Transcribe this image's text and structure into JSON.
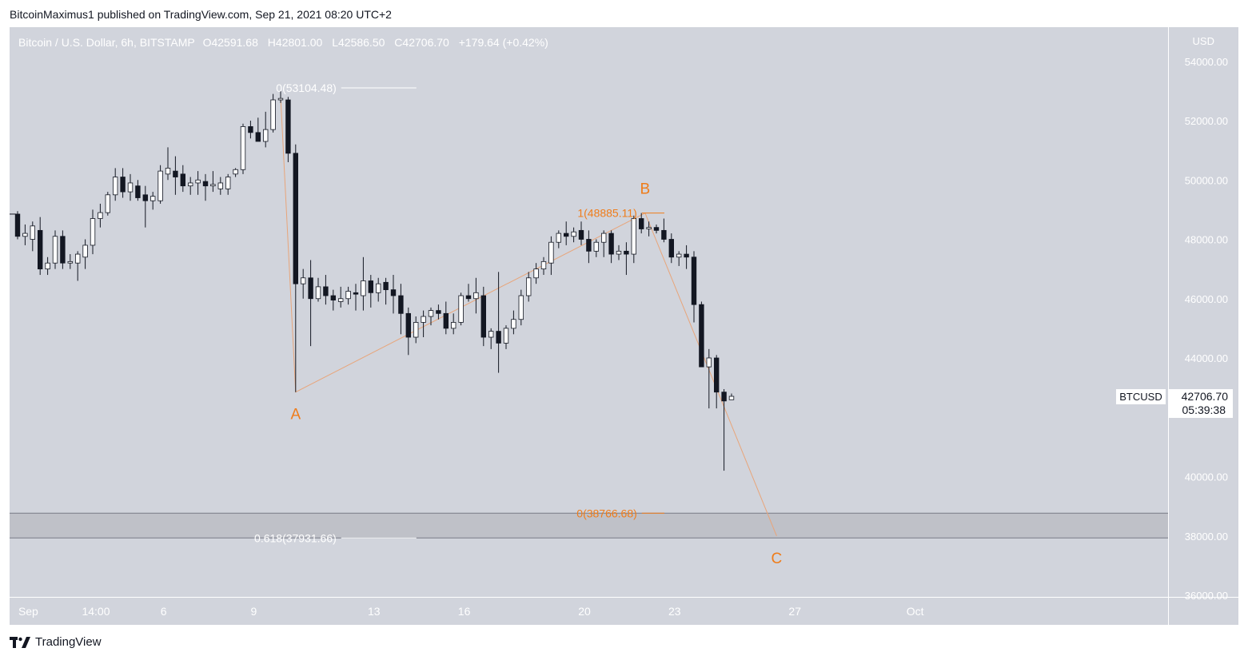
{
  "header": {
    "published_text": "BitcoinMaximus1 published on TradingView.com, Sep 21, 2021 08:20 UTC+2"
  },
  "legend": {
    "symbol": "Bitcoin / U.S. Dollar, 6h, BITSTAMP",
    "o_label": "O",
    "o_value": "42591.68",
    "h_label": "H",
    "h_value": "42801.00",
    "l_label": "L",
    "l_value": "42586.50",
    "c_label": "C",
    "c_value": "42706.70",
    "change": "+179.64 (+0.42%)"
  },
  "footer": {
    "brand": "TradingView"
  },
  "colors": {
    "plot_bg": "#d1d4dc",
    "candle_up": "#ffffff",
    "candle_down": "#131722",
    "wave": "#ef7c1a",
    "fib_white": "#ffffff",
    "zone": "#bfc1c8"
  },
  "chart_data": {
    "type": "candlestick",
    "currency_label": "USD",
    "ylim": [
      35500,
      55000
    ],
    "y_ticks": [
      "54000.00",
      "52000.00",
      "50000.00",
      "48000.00",
      "46000.00",
      "44000.00",
      "40000.00",
      "38000.00",
      "36000.00"
    ],
    "x_ticks": [
      {
        "label": "Sep",
        "x": 0.5
      },
      {
        "label": "14:00",
        "x": 2.75
      },
      {
        "label": "6",
        "x": 5.0
      },
      {
        "label": "9",
        "x": 8.0
      },
      {
        "label": "13",
        "x": 12.0
      },
      {
        "label": "16",
        "x": 15.0
      },
      {
        "label": "20",
        "x": 19.0
      },
      {
        "label": "23",
        "x": 22.0
      },
      {
        "label": "27",
        "x": 26.0
      },
      {
        "label": "Oct",
        "x": 30.0
      }
    ],
    "candles": [
      {
        "o": 48850,
        "h": 48950,
        "l": 48000,
        "c": 48100
      },
      {
        "o": 48100,
        "h": 48500,
        "l": 47800,
        "c": 48200
      },
      {
        "o": 48000,
        "h": 48600,
        "l": 47600,
        "c": 48450
      },
      {
        "o": 48300,
        "h": 48750,
        "l": 46800,
        "c": 47000
      },
      {
        "o": 47000,
        "h": 47400,
        "l": 46800,
        "c": 47200
      },
      {
        "o": 47200,
        "h": 48300,
        "l": 47000,
        "c": 48100
      },
      {
        "o": 48100,
        "h": 48300,
        "l": 47000,
        "c": 47200
      },
      {
        "o": 47200,
        "h": 47500,
        "l": 47000,
        "c": 47250
      },
      {
        "o": 47200,
        "h": 47600,
        "l": 46600,
        "c": 47500
      },
      {
        "o": 47400,
        "h": 48000,
        "l": 47000,
        "c": 47800
      },
      {
        "o": 47800,
        "h": 49000,
        "l": 47500,
        "c": 48700
      },
      {
        "o": 48700,
        "h": 49200,
        "l": 48400,
        "c": 48900
      },
      {
        "o": 48900,
        "h": 49600,
        "l": 48800,
        "c": 49500
      },
      {
        "o": 49500,
        "h": 50400,
        "l": 49300,
        "c": 50100
      },
      {
        "o": 50100,
        "h": 50400,
        "l": 49400,
        "c": 49600
      },
      {
        "o": 49600,
        "h": 50200,
        "l": 49300,
        "c": 49900
      },
      {
        "o": 49800,
        "h": 50000,
        "l": 49300,
        "c": 49400
      },
      {
        "o": 49500,
        "h": 49800,
        "l": 48400,
        "c": 49300
      },
      {
        "o": 49300,
        "h": 49600,
        "l": 49000,
        "c": 49450
      },
      {
        "o": 49300,
        "h": 50500,
        "l": 49200,
        "c": 50300
      },
      {
        "o": 50200,
        "h": 51100,
        "l": 50000,
        "c": 50400
      },
      {
        "o": 50300,
        "h": 50800,
        "l": 49500,
        "c": 50100
      },
      {
        "o": 50200,
        "h": 50500,
        "l": 49600,
        "c": 49800
      },
      {
        "o": 49800,
        "h": 50100,
        "l": 49500,
        "c": 49900
      },
      {
        "o": 49900,
        "h": 50300,
        "l": 49500,
        "c": 50000
      },
      {
        "o": 49950,
        "h": 50200,
        "l": 49300,
        "c": 49800
      },
      {
        "o": 49800,
        "h": 50300,
        "l": 49600,
        "c": 49850
      },
      {
        "o": 49700,
        "h": 50100,
        "l": 49500,
        "c": 49900
      },
      {
        "o": 49700,
        "h": 50200,
        "l": 49500,
        "c": 50100
      },
      {
        "o": 50200,
        "h": 50400,
        "l": 50100,
        "c": 50350
      },
      {
        "o": 50350,
        "h": 51900,
        "l": 50200,
        "c": 51800
      },
      {
        "o": 51800,
        "h": 52000,
        "l": 51400,
        "c": 51600
      },
      {
        "o": 51600,
        "h": 52100,
        "l": 51400,
        "c": 51300
      },
      {
        "o": 51300,
        "h": 52300,
        "l": 51100,
        "c": 51700
      },
      {
        "o": 51700,
        "h": 52900,
        "l": 51600,
        "c": 52700
      },
      {
        "o": 52700,
        "h": 53000,
        "l": 52600,
        "c": 52750
      },
      {
        "o": 52700,
        "h": 52800,
        "l": 50600,
        "c": 50900
      },
      {
        "o": 50900,
        "h": 51200,
        "l": 42850,
        "c": 46500
      },
      {
        "o": 46500,
        "h": 47000,
        "l": 46000,
        "c": 46700
      },
      {
        "o": 46700,
        "h": 47300,
        "l": 44400,
        "c": 46000
      },
      {
        "o": 46000,
        "h": 46700,
        "l": 45900,
        "c": 46400
      },
      {
        "o": 46400,
        "h": 46800,
        "l": 45800,
        "c": 46100
      },
      {
        "o": 46100,
        "h": 46300,
        "l": 45600,
        "c": 45950
      },
      {
        "o": 45900,
        "h": 46400,
        "l": 45700,
        "c": 46000
      },
      {
        "o": 46000,
        "h": 46400,
        "l": 45800,
        "c": 46250
      },
      {
        "o": 46200,
        "h": 46500,
        "l": 45600,
        "c": 46150
      },
      {
        "o": 46100,
        "h": 47400,
        "l": 45600,
        "c": 46600
      },
      {
        "o": 46600,
        "h": 46800,
        "l": 45700,
        "c": 46200
      },
      {
        "o": 46200,
        "h": 46700,
        "l": 45900,
        "c": 46500
      },
      {
        "o": 46550,
        "h": 46700,
        "l": 45800,
        "c": 46300
      },
      {
        "o": 46300,
        "h": 46800,
        "l": 45500,
        "c": 46100
      },
      {
        "o": 46100,
        "h": 46500,
        "l": 44800,
        "c": 45500
      },
      {
        "o": 45500,
        "h": 45700,
        "l": 44100,
        "c": 44700
      },
      {
        "o": 44700,
        "h": 45400,
        "l": 44500,
        "c": 45200
      },
      {
        "o": 45200,
        "h": 45600,
        "l": 44700,
        "c": 45400
      },
      {
        "o": 45400,
        "h": 45700,
        "l": 45100,
        "c": 45600
      },
      {
        "o": 45600,
        "h": 45800,
        "l": 45300,
        "c": 45500
      },
      {
        "o": 45500,
        "h": 45900,
        "l": 44800,
        "c": 45000
      },
      {
        "o": 45000,
        "h": 45500,
        "l": 44800,
        "c": 45200
      },
      {
        "o": 45200,
        "h": 46200,
        "l": 45100,
        "c": 46100
      },
      {
        "o": 46100,
        "h": 46500,
        "l": 45900,
        "c": 46000
      },
      {
        "o": 46000,
        "h": 46700,
        "l": 45500,
        "c": 46200
      },
      {
        "o": 46100,
        "h": 46400,
        "l": 44400,
        "c": 44700
      },
      {
        "o": 44700,
        "h": 45000,
        "l": 44300,
        "c": 44900
      },
      {
        "o": 44900,
        "h": 46900,
        "l": 43500,
        "c": 44500
      },
      {
        "o": 44500,
        "h": 45100,
        "l": 44300,
        "c": 45000
      },
      {
        "o": 45000,
        "h": 45600,
        "l": 44800,
        "c": 45300
      },
      {
        "o": 45300,
        "h": 46300,
        "l": 45100,
        "c": 46100
      },
      {
        "o": 46100,
        "h": 46900,
        "l": 45900,
        "c": 46700
      },
      {
        "o": 46700,
        "h": 47200,
        "l": 46500,
        "c": 47000
      },
      {
        "o": 47000,
        "h": 47400,
        "l": 46800,
        "c": 47250
      },
      {
        "o": 47200,
        "h": 48100,
        "l": 46800,
        "c": 47900
      },
      {
        "o": 47900,
        "h": 48300,
        "l": 47700,
        "c": 48200
      },
      {
        "o": 48200,
        "h": 48600,
        "l": 47800,
        "c": 48100
      },
      {
        "o": 48100,
        "h": 48400,
        "l": 47900,
        "c": 48250
      },
      {
        "o": 48300,
        "h": 48600,
        "l": 47800,
        "c": 48000
      },
      {
        "o": 48000,
        "h": 48300,
        "l": 47200,
        "c": 47600
      },
      {
        "o": 47600,
        "h": 48000,
        "l": 47400,
        "c": 47900
      },
      {
        "o": 47900,
        "h": 48300,
        "l": 47400,
        "c": 48200
      },
      {
        "o": 48200,
        "h": 48300,
        "l": 47200,
        "c": 47500
      },
      {
        "o": 47500,
        "h": 47800,
        "l": 47300,
        "c": 47600
      },
      {
        "o": 47600,
        "h": 47900,
        "l": 46800,
        "c": 47500
      },
      {
        "o": 47500,
        "h": 48800,
        "l": 47200,
        "c": 48700
      },
      {
        "o": 48700,
        "h": 48885,
        "l": 48200,
        "c": 48350
      },
      {
        "o": 48350,
        "h": 48600,
        "l": 48100,
        "c": 48400
      },
      {
        "o": 48400,
        "h": 48500,
        "l": 48200,
        "c": 48300
      },
      {
        "o": 48300,
        "h": 48700,
        "l": 47900,
        "c": 48000
      },
      {
        "o": 48000,
        "h": 48200,
        "l": 47200,
        "c": 47400
      },
      {
        "o": 47400,
        "h": 47600,
        "l": 47100,
        "c": 47500
      },
      {
        "o": 47500,
        "h": 47800,
        "l": 47000,
        "c": 47400
      },
      {
        "o": 47400,
        "h": 47600,
        "l": 45200,
        "c": 45800
      },
      {
        "o": 45800,
        "h": 45900,
        "l": 43700,
        "c": 43700
      },
      {
        "o": 43700,
        "h": 44300,
        "l": 42300,
        "c": 44000
      },
      {
        "o": 44000,
        "h": 44100,
        "l": 42300,
        "c": 42850
      },
      {
        "o": 42850,
        "h": 42950,
        "l": 40200,
        "c": 42550
      },
      {
        "o": 42591.68,
        "h": 42801,
        "l": 42586.5,
        "c": 42706.7
      }
    ],
    "fib_levels": [
      {
        "label": "0(53104.48)",
        "value": 53104.48,
        "color": "white",
        "x0": 42.0,
        "x1": 52.0
      },
      {
        "label": "1(48885.11)",
        "value": 48885.11,
        "color": "orange",
        "x0": 82.0,
        "x1": 85.0
      },
      {
        "label": "0(38766.68)",
        "value": 38766.68,
        "color": "orange",
        "x0": 82.0,
        "x1": 85.0
      },
      {
        "label": "0.618(37931.66)",
        "value": 37931.66,
        "color": "white",
        "x0": 42.0,
        "x1": 52.0
      }
    ],
    "zone": {
      "from": 37931.66,
      "to": 38766.68
    },
    "waves": [
      {
        "label": "A",
        "x": 37.0,
        "y": 42850
      },
      {
        "label": "B",
        "x": 83.5,
        "y": 48885
      },
      {
        "label": "C",
        "x": 101.0,
        "y": 38000
      }
    ],
    "wave_path": [
      {
        "x": 35.0,
        "y": 52800
      },
      {
        "x": 37.0,
        "y": 42850
      },
      {
        "x": 83.5,
        "y": 48885
      },
      {
        "x": 101.0,
        "y": 38000
      }
    ],
    "last_price": {
      "symbol": "BTCUSD",
      "price": "42706.70",
      "countdown": "05:39:38"
    }
  }
}
